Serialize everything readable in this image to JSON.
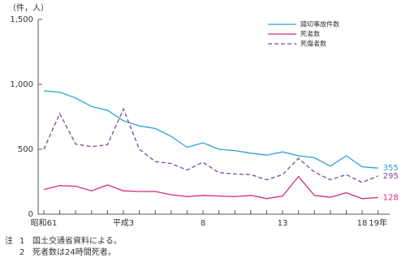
{
  "chart_data": {
    "type": "line",
    "y_axis_label": "（件，人）",
    "categories": [
      "昭和61",
      null,
      null,
      null,
      null,
      "平成3",
      null,
      null,
      null,
      null,
      "8",
      null,
      null,
      null,
      null,
      "13",
      null,
      null,
      null,
      null,
      "18",
      "19年"
    ],
    "series": [
      {
        "name": "踏切事故件数",
        "color": "#2a9fd8",
        "dash": false,
        "values": [
          950,
          940,
          895,
          830,
          800,
          720,
          680,
          660,
          600,
          515,
          550,
          500,
          490,
          470,
          455,
          480,
          450,
          435,
          370,
          450,
          365,
          355
        ]
      },
      {
        "name": "死者数",
        "color": "#d6297a",
        "dash": false,
        "values": [
          190,
          220,
          215,
          180,
          225,
          180,
          175,
          175,
          150,
          135,
          145,
          140,
          135,
          145,
          120,
          140,
          290,
          145,
          130,
          165,
          120,
          128
        ]
      },
      {
        "name": "死傷者数",
        "color": "#7b4a9e",
        "dash": true,
        "values": [
          500,
          775,
          540,
          520,
          535,
          810,
          500,
          405,
          390,
          340,
          400,
          320,
          310,
          305,
          265,
          305,
          430,
          325,
          265,
          305,
          245,
          295
        ]
      }
    ],
    "ylim": [
      0,
      1500
    ],
    "yticks": [
      0,
      500,
      {
        "value": 1000,
        "label": "1,000"
      },
      {
        "value": 1500,
        "label": "1,500"
      }
    ],
    "legend": "top-right"
  },
  "notes_label": "注",
  "notes": [
    {
      "number": "1",
      "text": "国土交通省資料による。"
    },
    {
      "number": "2",
      "text": "死者数は24時間死者。"
    }
  ]
}
